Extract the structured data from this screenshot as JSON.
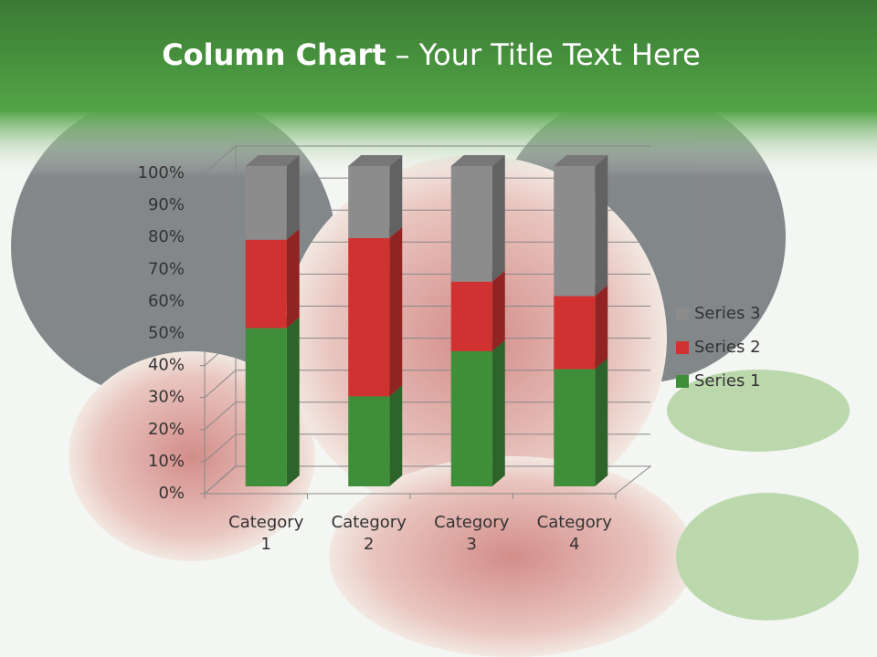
{
  "chart_data": {
    "type": "bar3d_stacked_percent",
    "title": [
      "Column Chart",
      "– Your Title Text Here"
    ],
    "categories": [
      "Category 1",
      "Category 2",
      "Category 3",
      "Category 4"
    ],
    "series": [
      {
        "name": "Series 1",
        "color": "#3f8f3a",
        "values": [
          49.4,
          28.1,
          42.2,
          36.6
        ]
      },
      {
        "name": "Series 2",
        "color": "#d03232",
        "values": [
          27.6,
          49.4,
          21.7,
          22.8
        ]
      },
      {
        "name": "Series 3",
        "color": "#8c8c8c",
        "values": [
          23.0,
          22.5,
          36.1,
          40.6
        ]
      }
    ],
    "ylim": [
      0,
      100
    ],
    "yticks": [
      {
        "value": 0,
        "label": "0%"
      },
      {
        "value": 10,
        "label": "10%"
      },
      {
        "value": 20,
        "label": "20%"
      },
      {
        "value": 30,
        "label": "30%"
      },
      {
        "value": 40,
        "label": "40%"
      },
      {
        "value": 50,
        "label": "50%"
      },
      {
        "value": 60,
        "label": "60%"
      },
      {
        "value": 70,
        "label": "70%"
      },
      {
        "value": 80,
        "label": "80%"
      },
      {
        "value": 90,
        "label": "90%"
      },
      {
        "value": 100,
        "label": "100%"
      }
    ],
    "grid": true,
    "legend": "right"
  }
}
